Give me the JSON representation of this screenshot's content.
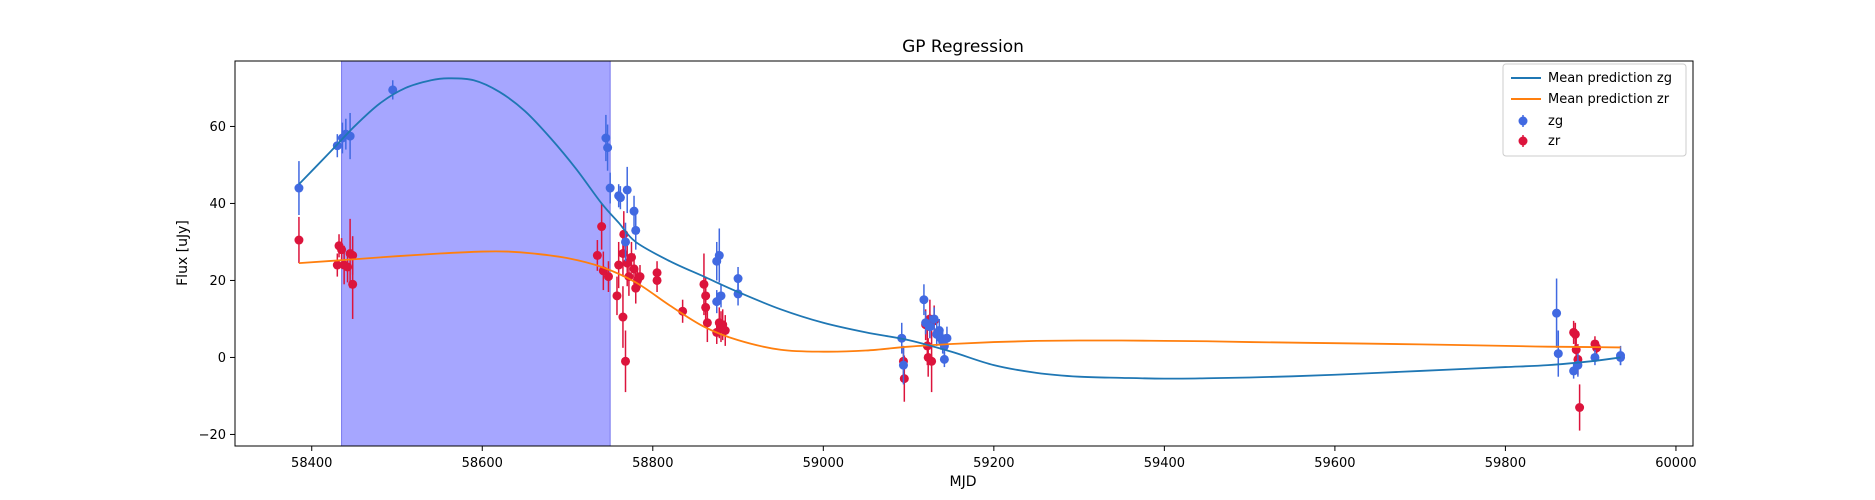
{
  "chart_data": {
    "type": "scatter",
    "title": "GP Regression",
    "xlabel": "MJD",
    "ylabel": "Flux [uJy]",
    "xlim": [
      58310,
      60020
    ],
    "ylim": [
      -23,
      77
    ],
    "xticks": [
      58400,
      58600,
      58800,
      59000,
      59200,
      59400,
      59600,
      59800,
      60000
    ],
    "yticks": [
      -20,
      0,
      20,
      40,
      60
    ],
    "grid": false,
    "legend_position": "top-right",
    "shaded_region": {
      "x_start": 58435,
      "x_end": 58750,
      "color": "#a6a6ff"
    },
    "series": [
      {
        "name": "Mean prediction zg",
        "kind": "line",
        "color": "#1f77b4",
        "x": [
          58385,
          58420,
          58450,
          58480,
          58510,
          58540,
          58560,
          58590,
          58620,
          58650,
          58680,
          58710,
          58740,
          58760,
          58780,
          58820,
          58860,
          58900,
          58950,
          59000,
          59050,
          59100,
          59150,
          59200,
          59250,
          59300,
          59350,
          59400,
          59450,
          59500,
          59550,
          59600,
          59650,
          59700,
          59750,
          59800,
          59850,
          59900,
          59935
        ],
        "y": [
          45,
          53,
          60,
          66,
          70,
          72,
          72.5,
          72,
          69,
          64,
          57,
          49,
          40,
          35,
          30,
          25,
          21,
          17,
          12.5,
          9,
          6.5,
          4.5,
          1.5,
          -2,
          -4,
          -5,
          -5.3,
          -5.5,
          -5.4,
          -5.2,
          -4.9,
          -4.5,
          -4,
          -3.5,
          -3,
          -2.5,
          -2,
          -1,
          0
        ]
      },
      {
        "name": "Mean prediction zr",
        "kind": "line",
        "color": "#ff7f0e",
        "x": [
          58385,
          58450,
          58500,
          58550,
          58600,
          58630,
          58660,
          58700,
          58740,
          58780,
          58820,
          58860,
          58900,
          58950,
          59000,
          59050,
          59100,
          59150,
          59200,
          59250,
          59300,
          59350,
          59400,
          59450,
          59500,
          59600,
          59700,
          59800,
          59850,
          59900,
          59935
        ],
        "y": [
          24.5,
          25.5,
          26.3,
          27,
          27.5,
          27.5,
          27,
          25.8,
          23.5,
          19.5,
          13.5,
          8,
          4.5,
          2,
          1.5,
          1.8,
          2.8,
          3.5,
          4,
          4.3,
          4.4,
          4.4,
          4.3,
          4.2,
          4,
          3.7,
          3.4,
          3,
          2.8,
          2.7,
          2.6
        ]
      },
      {
        "name": "zg",
        "kind": "errorbar",
        "color": "#4169e1",
        "points": [
          [
            58385,
            44,
            7
          ],
          [
            58430,
            55,
            3
          ],
          [
            58436,
            57,
            4
          ],
          [
            58440,
            58,
            4
          ],
          [
            58445,
            57.5,
            6
          ],
          [
            58495,
            69.5,
            2.5
          ],
          [
            58745,
            57,
            6
          ],
          [
            58747,
            54.5,
            6
          ],
          [
            58750,
            44,
            4
          ],
          [
            58760,
            42,
            3
          ],
          [
            58762,
            41.5,
            3
          ],
          [
            58770,
            43.5,
            6
          ],
          [
            58768,
            30,
            5
          ],
          [
            58778,
            38,
            4
          ],
          [
            58780,
            33,
            5
          ],
          [
            58875,
            25,
            5
          ],
          [
            58878,
            26.5,
            7
          ],
          [
            58875,
            14.5,
            3
          ],
          [
            58880,
            16,
            3
          ],
          [
            58900,
            16.5,
            3
          ],
          [
            58900,
            20.5,
            3
          ],
          [
            59092,
            5,
            4
          ],
          [
            59094,
            -2,
            5
          ],
          [
            59118,
            15,
            4
          ],
          [
            59120,
            9,
            3
          ],
          [
            59125,
            8,
            3
          ],
          [
            59130,
            10,
            3
          ],
          [
            59133,
            6,
            3
          ],
          [
            59136,
            7,
            3
          ],
          [
            59138,
            5,
            3
          ],
          [
            59140,
            4,
            3
          ],
          [
            59142,
            3,
            3
          ],
          [
            59142,
            -0.5,
            2
          ],
          [
            59145,
            5,
            3
          ],
          [
            59860,
            11.5,
            9
          ],
          [
            59862,
            1,
            6
          ],
          [
            59880,
            -3.5,
            2
          ],
          [
            59885,
            -2,
            3
          ],
          [
            59905,
            0,
            2
          ],
          [
            59935,
            0.5,
            2.5
          ],
          [
            59935,
            0,
            2
          ]
        ]
      },
      {
        "name": "zr",
        "kind": "errorbar",
        "color": "#dc143c",
        "points": [
          [
            58385,
            30.5,
            6
          ],
          [
            58430,
            24,
            3
          ],
          [
            58432,
            29,
            3
          ],
          [
            58435,
            28,
            3
          ],
          [
            58438,
            24,
            5
          ],
          [
            58442,
            23.5,
            4
          ],
          [
            58445,
            27,
            9
          ],
          [
            58448,
            19,
            9
          ],
          [
            58448,
            26.5,
            5
          ],
          [
            58735,
            26.5,
            4
          ],
          [
            58740,
            34,
            6
          ],
          [
            58742,
            22.5,
            5
          ],
          [
            58748,
            21,
            4
          ],
          [
            58758,
            16,
            5
          ],
          [
            58760,
            24,
            6
          ],
          [
            58765,
            27,
            6
          ],
          [
            58766,
            32,
            6
          ],
          [
            58765,
            10.5,
            8
          ],
          [
            58768,
            -1,
            8
          ],
          [
            58770,
            24.5,
            6
          ],
          [
            58772,
            21,
            5
          ],
          [
            58775,
            26,
            4
          ],
          [
            58778,
            23,
            4
          ],
          [
            58780,
            18,
            4
          ],
          [
            58782,
            20,
            3
          ],
          [
            58785,
            21,
            3
          ],
          [
            58805,
            20,
            3
          ],
          [
            58805,
            22,
            3
          ],
          [
            58835,
            12,
            3
          ],
          [
            58860,
            19,
            8
          ],
          [
            58862,
            16,
            5
          ],
          [
            58862,
            13,
            5
          ],
          [
            58864,
            9,
            5
          ],
          [
            58875,
            6.5,
            3
          ],
          [
            58878,
            9,
            4
          ],
          [
            58880,
            8,
            4
          ],
          [
            58882,
            8.5,
            4
          ],
          [
            58885,
            7,
            4
          ],
          [
            59094,
            -1,
            4
          ],
          [
            59095,
            -5.5,
            6
          ],
          [
            59120,
            8.5,
            4
          ],
          [
            59122,
            3,
            5
          ],
          [
            59123,
            0,
            5
          ],
          [
            59125,
            10,
            5
          ],
          [
            59127,
            -1,
            8
          ],
          [
            59130,
            9.5,
            4
          ],
          [
            59880,
            6.5,
            3
          ],
          [
            59882,
            6,
            3
          ],
          [
            59883,
            2,
            4
          ],
          [
            59885,
            -0.5,
            4
          ],
          [
            59887,
            -13,
            6
          ],
          [
            59905,
            3.5,
            2
          ],
          [
            59907,
            2.5,
            2
          ]
        ]
      }
    ]
  }
}
